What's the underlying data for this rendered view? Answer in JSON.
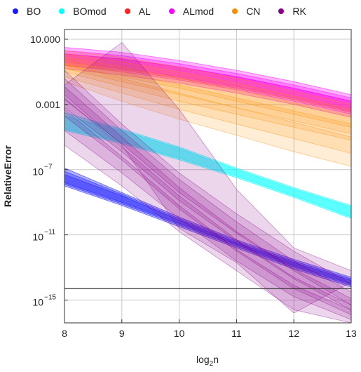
{
  "chart_data": {
    "type": "area",
    "xlabel": "log₂n",
    "ylabel": "RelativeError",
    "xlim": [
      8,
      13
    ],
    "ylim_log10": [
      -16.4,
      1.6
    ],
    "yscale": "log",
    "grid": true,
    "legend_placement": "top",
    "x_ticks": [
      "8",
      "9",
      "10",
      "11",
      "12",
      "13"
    ],
    "y_ticks": [
      {
        "label": "10.000",
        "exp": 1
      },
      {
        "label": "0.001",
        "exp": -3
      },
      {
        "label": "10",
        "sup": "−7",
        "exp": -7
      },
      {
        "label": "10",
        "sup": "−11",
        "exp": -11
      },
      {
        "label": "10",
        "sup": "−15",
        "exp": -15
      }
    ],
    "reference_line_log10": -14.3,
    "series": [
      {
        "name": "BO",
        "color": "#1a1aff",
        "opacity": 0.35,
        "x": [
          8,
          9,
          10,
          11,
          12,
          13
        ],
        "bands": [
          {
            "upper": [
              -6.9,
              -8.4,
              -9.9,
              -11.3,
              -12.5,
              -13.6
            ],
            "lower": [
              -7.8,
              -9.0,
              -10.3,
              -11.6,
              -12.9,
              -14.0
            ]
          },
          {
            "upper": [
              -7.1,
              -8.5,
              -10.0,
              -11.4,
              -12.6,
              -13.7
            ],
            "lower": [
              -7.9,
              -9.1,
              -10.4,
              -11.7,
              -13.0,
              -14.1
            ]
          },
          {
            "upper": [
              -7.3,
              -8.6,
              -10.1,
              -11.5,
              -12.7,
              -13.8
            ],
            "lower": [
              -8.0,
              -9.2,
              -10.5,
              -11.8,
              -13.1,
              -14.2
            ]
          }
        ]
      },
      {
        "name": "BOmod",
        "color": "#00ffff",
        "opacity": 0.4,
        "x": [
          8,
          9,
          10,
          11,
          12,
          13
        ],
        "bands": [
          {
            "upper": [
              -3.5,
              -4.5,
              -5.6,
              -6.9,
              -8.1,
              -9.2
            ],
            "lower": [
              -4.5,
              -5.3,
              -6.3,
              -7.4,
              -8.6,
              -9.9
            ]
          },
          {
            "upper": [
              -3.7,
              -4.6,
              -5.7,
              -7.0,
              -8.2,
              -9.3
            ],
            "lower": [
              -4.6,
              -5.4,
              -6.4,
              -7.5,
              -8.7,
              -10.0
            ]
          }
        ]
      },
      {
        "name": "AL",
        "color": "#ff2020",
        "opacity": 0.3,
        "x": [
          8,
          9,
          10,
          11,
          12,
          13
        ],
        "bands": [
          {
            "upper": [
              0.1,
              -0.2,
              -0.7,
              -1.3,
              -2.0,
              -2.8
            ],
            "lower": [
              -0.6,
              -0.9,
              -1.4,
              -2.0,
              -2.7,
              -3.5
            ]
          }
        ]
      },
      {
        "name": "ALmod",
        "color": "#ff00ff",
        "opacity": 0.3,
        "x": [
          8,
          9,
          10,
          11,
          12,
          13
        ],
        "bands": [
          {
            "upper": [
              0.5,
              0.2,
              -0.3,
              -0.9,
              -1.6,
              -2.4
            ],
            "lower": [
              -0.4,
              -0.8,
              -1.3,
              -1.9,
              -2.6,
              -3.4
            ]
          },
          {
            "upper": [
              0.3,
              0.0,
              -0.5,
              -1.1,
              -1.8,
              -2.6
            ],
            "lower": [
              -0.6,
              -1.0,
              -1.5,
              -2.1,
              -2.8,
              -3.6
            ]
          },
          {
            "upper": [
              0.1,
              -0.2,
              -0.7,
              -1.3,
              -2.0,
              -2.8
            ],
            "lower": [
              -0.8,
              -1.2,
              -1.7,
              -2.3,
              -3.0,
              -3.8
            ]
          }
        ]
      },
      {
        "name": "CN",
        "color": "#ff8c00",
        "opacity": 0.16,
        "x": [
          8,
          9,
          10,
          11,
          12,
          13
        ],
        "bands": [
          {
            "upper": [
              0.3,
              -0.1,
              -0.7,
              -1.4,
              -2.2,
              -3.0
            ],
            "lower": [
              -0.6,
              -1.3,
              -2.0,
              -2.8,
              -3.6,
              -4.4
            ]
          },
          {
            "upper": [
              0.1,
              -0.4,
              -1.0,
              -1.7,
              -2.5,
              -3.3
            ],
            "lower": [
              -0.8,
              -1.6,
              -2.4,
              -3.2,
              -4.0,
              -4.8
            ]
          },
          {
            "upper": [
              -0.1,
              -0.7,
              -1.4,
              -2.1,
              -2.9,
              -3.7
            ],
            "lower": [
              -1.0,
              -1.9,
              -2.8,
              -3.6,
              -4.4,
              -5.2
            ]
          },
          {
            "upper": [
              -0.3,
              -1.0,
              -1.8,
              -2.6,
              -3.4,
              -4.2
            ],
            "lower": [
              -1.3,
              -2.3,
              -3.3,
              -4.2,
              -5.1,
              -6.0
            ]
          },
          {
            "upper": [
              -0.5,
              -1.4,
              -2.3,
              -3.2,
              -4.1,
              -5.0
            ],
            "lower": [
              -1.6,
              -2.8,
              -3.9,
              -4.9,
              -5.9,
              -6.8
            ]
          }
        ]
      },
      {
        "name": "RK",
        "color": "#8b008b",
        "opacity": 0.16,
        "x": [
          8,
          9,
          10,
          11,
          12,
          13
        ],
        "bands": [
          {
            "upper": [
              -0.9,
              -4.2,
              -7.2,
              -9.7,
              -12.0,
              -14.0
            ],
            "lower": [
              -2.7,
              -5.4,
              -8.4,
              -10.9,
              -13.2,
              -15.3
            ]
          },
          {
            "upper": [
              -1.4,
              -4.6,
              -7.6,
              -10.2,
              -12.6,
              -14.5
            ],
            "lower": [
              -3.2,
              -5.9,
              -8.9,
              -11.4,
              -13.7,
              -15.6
            ]
          },
          {
            "upper": [
              -1.9,
              -5.0,
              -8.1,
              -10.8,
              -13.1,
              -14.9
            ],
            "lower": [
              -3.7,
              -6.4,
              -9.4,
              -12.0,
              -14.3,
              -15.9
            ]
          },
          {
            "upper": [
              -2.6,
              -5.6,
              -8.6,
              -11.3,
              -13.6,
              -15.3
            ],
            "lower": [
              -4.6,
              -7.2,
              -10.0,
              -12.6,
              -14.8,
              -16.2
            ]
          },
          {
            "upper": [
              -3.3,
              -6.2,
              -9.2,
              -11.9,
              -14.1,
              -15.6
            ],
            "lower": [
              -5.5,
              -8.0,
              -10.8,
              -13.2,
              -15.6,
              -16.4
            ]
          },
          {
            "upper": [
              -1.8,
              0.8,
              -3.3,
              -8.2,
              -11.8,
              -13.2
            ],
            "lower": [
              -2.4,
              -5.5,
              -10.6,
              -12.7,
              -15.8,
              -13.9
            ]
          }
        ]
      }
    ]
  }
}
